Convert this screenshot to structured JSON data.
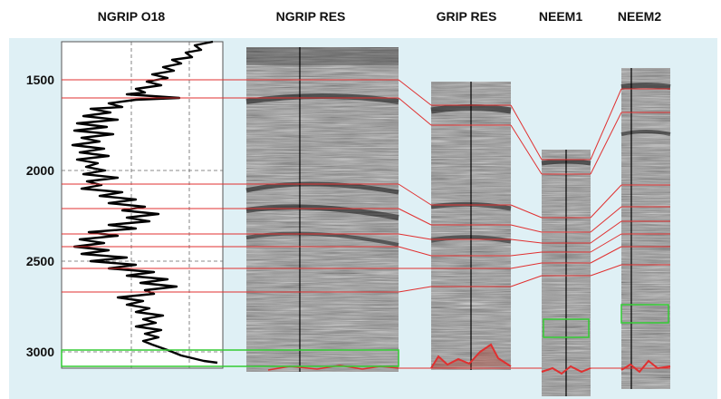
{
  "headers": {
    "ngrip_o18": "NGRIP O18",
    "ngrip_res": "NGRIP RES",
    "grip_res": "GRIP RES",
    "neem1": "NEEM1",
    "neem2": "NEEM2"
  },
  "depth_ticks": [
    "1500",
    "2000",
    "2500",
    "3000"
  ],
  "colors": {
    "panel_background": "#dff0f5",
    "correlation_line": "#e03030",
    "highlight_box": "#33cc33",
    "radar_base": "#8c8c8c"
  }
}
